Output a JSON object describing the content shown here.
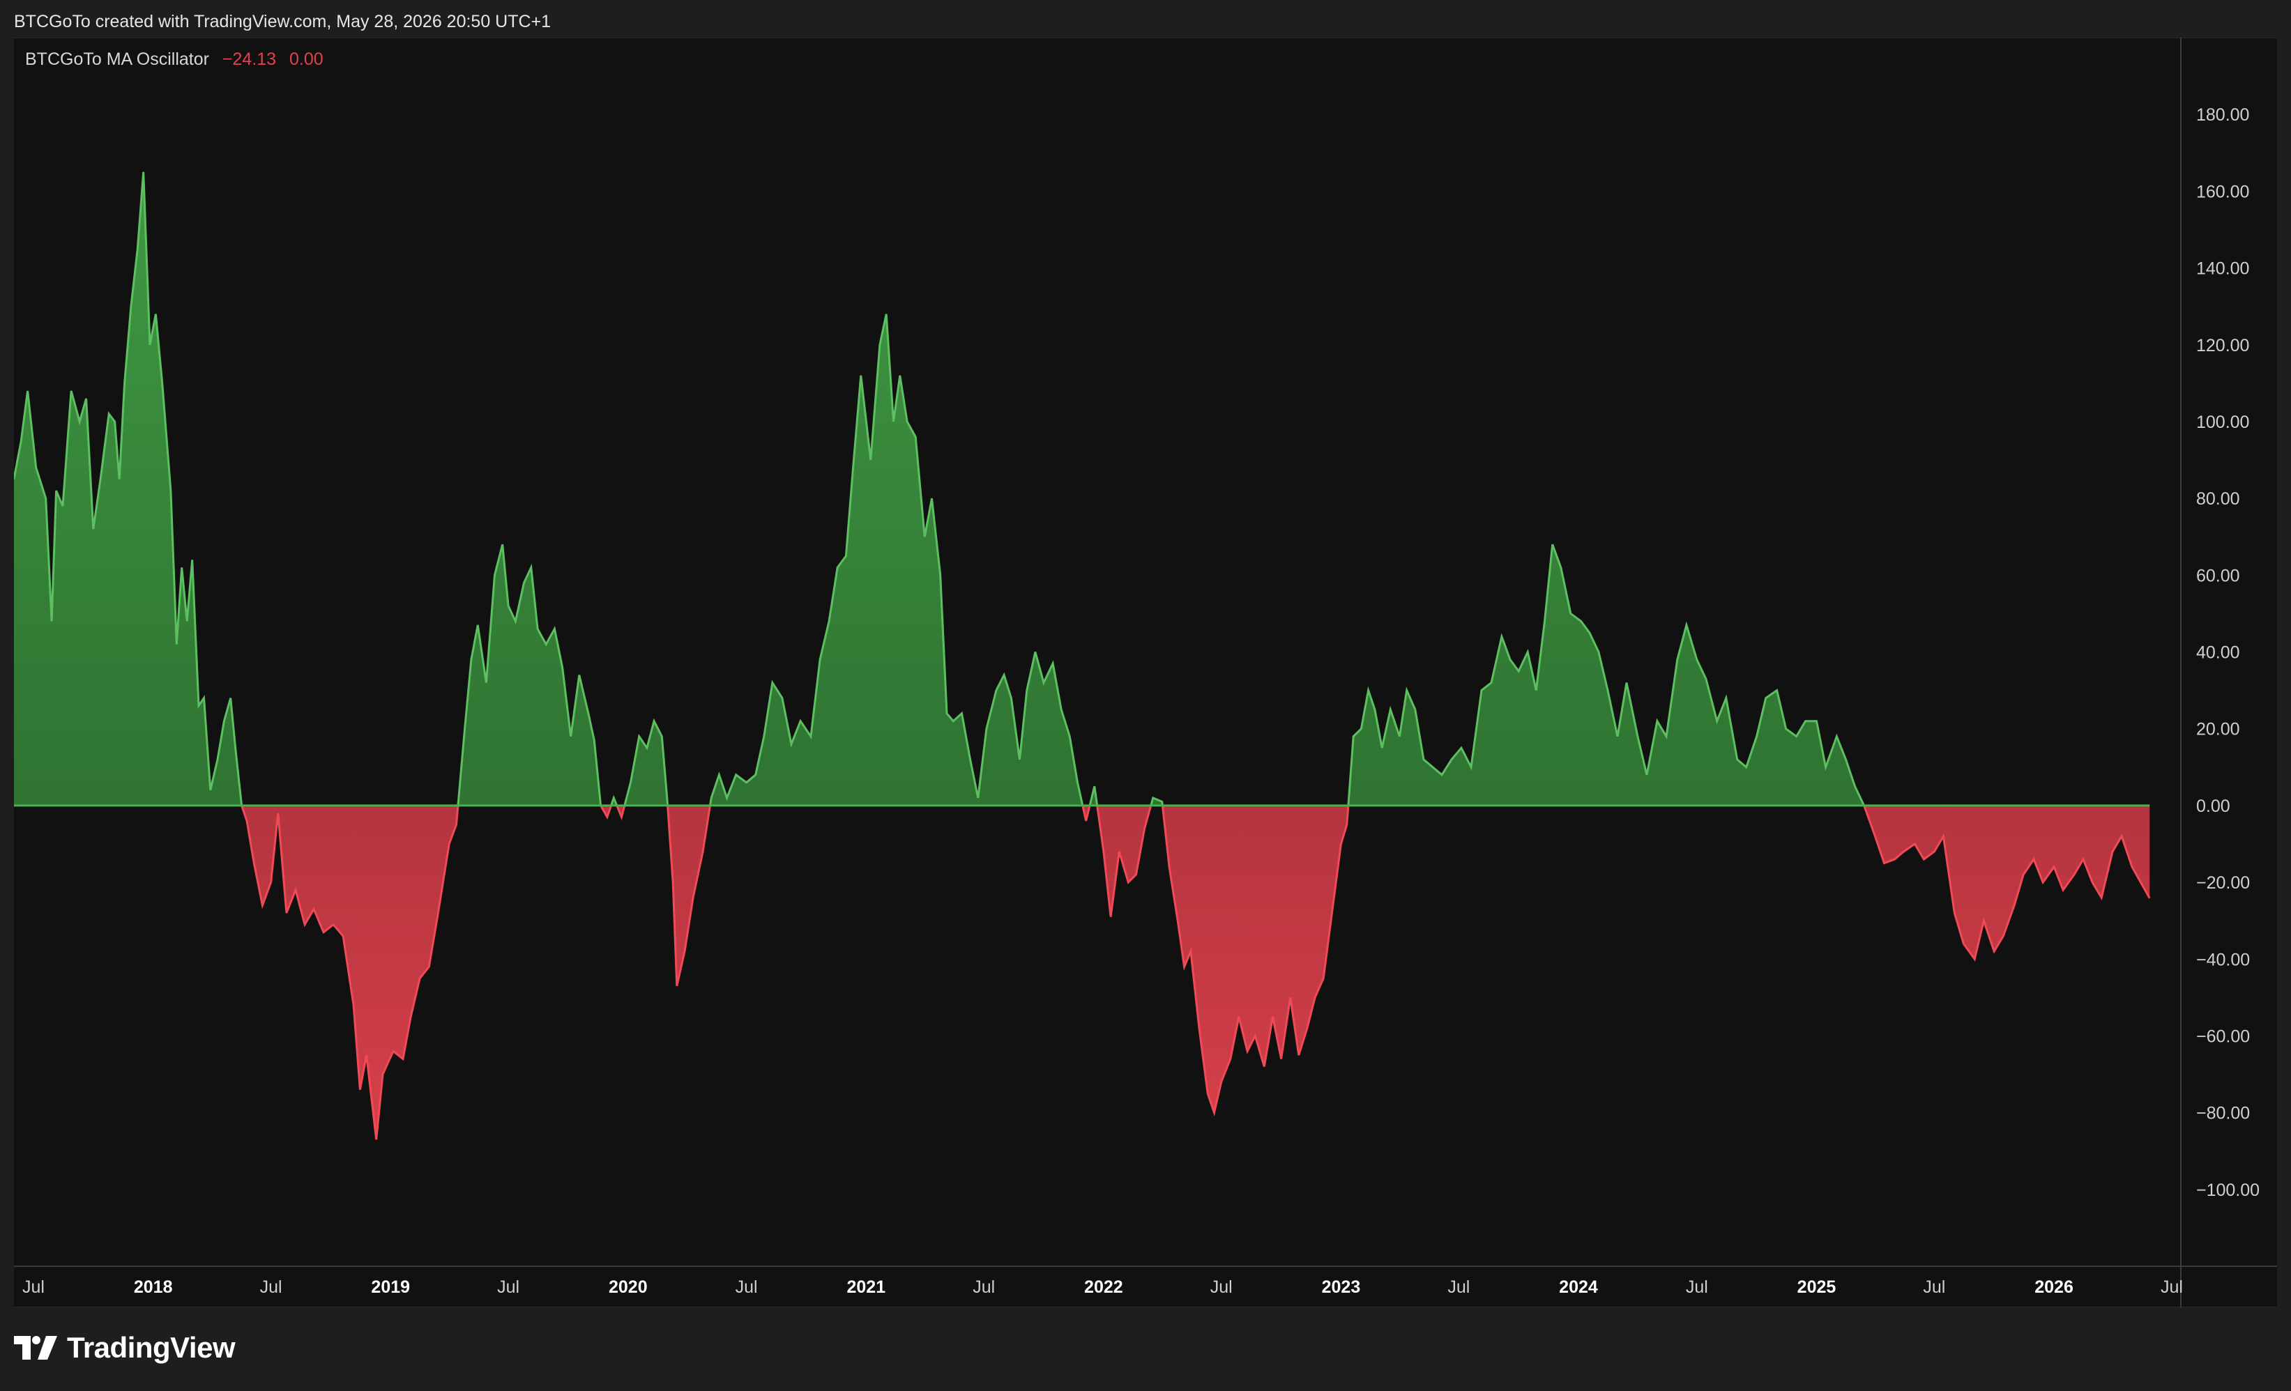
{
  "header": {
    "text": "BTCGoTo created with TradingView.com, May 28, 2026 20:50 UTC+1"
  },
  "legend": {
    "name": "BTCGoTo MA Oscillator",
    "value1": "−24.13",
    "value2": "0.00"
  },
  "brand": {
    "name": "TradingView"
  },
  "colors": {
    "positive": "#43a047",
    "negative": "#e0424d",
    "background": "#111111",
    "zero_line_positive": "#4caf50"
  },
  "chart_data": {
    "type": "area",
    "title": "",
    "xlabel": "",
    "ylabel": "",
    "ylim": [
      -120,
      200
    ],
    "xlim": [
      "2017-06-01",
      "2026-07-15"
    ],
    "y_ticks": [
      180,
      160,
      140,
      120,
      100,
      80,
      60,
      40,
      20,
      0,
      -20,
      -40,
      -60,
      -80,
      -100
    ],
    "y_tick_labels": [
      "180.00",
      "160.00",
      "140.00",
      "120.00",
      "100.00",
      "80.00",
      "60.00",
      "40.00",
      "20.00",
      "0.00",
      "−20.00",
      "−40.00",
      "−60.00",
      "−80.00",
      "−100.00"
    ],
    "x_ticks": [
      {
        "label": "Jul",
        "date": "2017-07-01",
        "year": false
      },
      {
        "label": "2018",
        "date": "2018-01-01",
        "year": true
      },
      {
        "label": "Jul",
        "date": "2018-07-01",
        "year": false
      },
      {
        "label": "2019",
        "date": "2019-01-01",
        "year": true
      },
      {
        "label": "Jul",
        "date": "2019-07-01",
        "year": false
      },
      {
        "label": "2020",
        "date": "2020-01-01",
        "year": true
      },
      {
        "label": "Jul",
        "date": "2020-07-01",
        "year": false
      },
      {
        "label": "2021",
        "date": "2021-01-01",
        "year": true
      },
      {
        "label": "Jul",
        "date": "2021-07-01",
        "year": false
      },
      {
        "label": "2022",
        "date": "2022-01-01",
        "year": true
      },
      {
        "label": "Jul",
        "date": "2022-07-01",
        "year": false
      },
      {
        "label": "2023",
        "date": "2023-01-01",
        "year": true
      },
      {
        "label": "Jul",
        "date": "2023-07-01",
        "year": false
      },
      {
        "label": "2024",
        "date": "2024-01-01",
        "year": true
      },
      {
        "label": "Jul",
        "date": "2024-07-01",
        "year": false
      },
      {
        "label": "2025",
        "date": "2025-01-01",
        "year": true
      },
      {
        "label": "Jul",
        "date": "2025-07-01",
        "year": false
      },
      {
        "label": "2026",
        "date": "2026-01-01",
        "year": true
      },
      {
        "label": "Jul",
        "date": "2026-07-01",
        "year": false
      }
    ],
    "grid": false,
    "series": [
      {
        "name": "BTCGoTo MA Oscillator",
        "points": [
          [
            "2017-06-01",
            85
          ],
          [
            "2017-06-12",
            95
          ],
          [
            "2017-06-22",
            108
          ],
          [
            "2017-07-05",
            88
          ],
          [
            "2017-07-20",
            80
          ],
          [
            "2017-07-29",
            48
          ],
          [
            "2017-08-05",
            82
          ],
          [
            "2017-08-15",
            78
          ],
          [
            "2017-08-28",
            108
          ],
          [
            "2017-09-10",
            100
          ],
          [
            "2017-09-20",
            106
          ],
          [
            "2017-10-01",
            72
          ],
          [
            "2017-10-12",
            85
          ],
          [
            "2017-10-25",
            102
          ],
          [
            "2017-11-03",
            100
          ],
          [
            "2017-11-10",
            85
          ],
          [
            "2017-11-18",
            110
          ],
          [
            "2017-11-28",
            130
          ],
          [
            "2017-12-08",
            145
          ],
          [
            "2017-12-17",
            165
          ],
          [
            "2017-12-27",
            120
          ],
          [
            "2018-01-05",
            128
          ],
          [
            "2018-01-15",
            110
          ],
          [
            "2018-01-28",
            82
          ],
          [
            "2018-02-06",
            42
          ],
          [
            "2018-02-14",
            62
          ],
          [
            "2018-02-22",
            48
          ],
          [
            "2018-03-02",
            64
          ],
          [
            "2018-03-12",
            26
          ],
          [
            "2018-03-20",
            28
          ],
          [
            "2018-03-30",
            4
          ],
          [
            "2018-04-10",
            12
          ],
          [
            "2018-04-20",
            22
          ],
          [
            "2018-04-30",
            28
          ],
          [
            "2018-05-08",
            14
          ],
          [
            "2018-05-17",
            0
          ],
          [
            "2018-05-25",
            -4
          ],
          [
            "2018-06-05",
            -15
          ],
          [
            "2018-06-18",
            -26
          ],
          [
            "2018-07-01",
            -20
          ],
          [
            "2018-07-12",
            -2
          ],
          [
            "2018-07-25",
            -28
          ],
          [
            "2018-08-08",
            -22
          ],
          [
            "2018-08-22",
            -31
          ],
          [
            "2018-09-05",
            -27
          ],
          [
            "2018-09-20",
            -33
          ],
          [
            "2018-10-05",
            -31
          ],
          [
            "2018-10-20",
            -34
          ],
          [
            "2018-11-05",
            -52
          ],
          [
            "2018-11-15",
            -74
          ],
          [
            "2018-11-25",
            -65
          ],
          [
            "2018-12-10",
            -87
          ],
          [
            "2018-12-20",
            -70
          ],
          [
            "2019-01-05",
            -64
          ],
          [
            "2019-01-20",
            -66
          ],
          [
            "2019-02-01",
            -55
          ],
          [
            "2019-02-15",
            -45
          ],
          [
            "2019-03-01",
            -42
          ],
          [
            "2019-03-15",
            -28
          ],
          [
            "2019-04-01",
            -10
          ],
          [
            "2019-04-12",
            -5
          ],
          [
            "2019-04-25",
            20
          ],
          [
            "2019-05-05",
            38
          ],
          [
            "2019-05-15",
            47
          ],
          [
            "2019-05-28",
            32
          ],
          [
            "2019-06-10",
            60
          ],
          [
            "2019-06-22",
            68
          ],
          [
            "2019-07-01",
            52
          ],
          [
            "2019-07-12",
            48
          ],
          [
            "2019-07-25",
            58
          ],
          [
            "2019-08-05",
            62
          ],
          [
            "2019-08-15",
            46
          ],
          [
            "2019-08-28",
            42
          ],
          [
            "2019-09-10",
            46
          ],
          [
            "2019-09-22",
            36
          ],
          [
            "2019-10-05",
            18
          ],
          [
            "2019-10-18",
            34
          ],
          [
            "2019-11-01",
            24
          ],
          [
            "2019-11-10",
            17
          ],
          [
            "2019-11-20",
            0
          ],
          [
            "2019-11-30",
            -3
          ],
          [
            "2019-12-10",
            2
          ],
          [
            "2019-12-22",
            -3
          ],
          [
            "2020-01-05",
            6
          ],
          [
            "2020-01-18",
            18
          ],
          [
            "2020-01-30",
            15
          ],
          [
            "2020-02-10",
            22
          ],
          [
            "2020-02-22",
            18
          ],
          [
            "2020-03-01",
            2
          ],
          [
            "2020-03-10",
            -20
          ],
          [
            "2020-03-16",
            -47
          ],
          [
            "2020-03-28",
            -38
          ],
          [
            "2020-04-10",
            -24
          ],
          [
            "2020-04-25",
            -12
          ],
          [
            "2020-05-08",
            2
          ],
          [
            "2020-05-20",
            8
          ],
          [
            "2020-06-01",
            2
          ],
          [
            "2020-06-15",
            8
          ],
          [
            "2020-07-01",
            6
          ],
          [
            "2020-07-15",
            8
          ],
          [
            "2020-07-28",
            18
          ],
          [
            "2020-08-10",
            32
          ],
          [
            "2020-08-25",
            28
          ],
          [
            "2020-09-08",
            16
          ],
          [
            "2020-09-22",
            22
          ],
          [
            "2020-10-08",
            18
          ],
          [
            "2020-10-22",
            38
          ],
          [
            "2020-11-05",
            48
          ],
          [
            "2020-11-18",
            62
          ],
          [
            "2020-12-01",
            65
          ],
          [
            "2020-12-12",
            88
          ],
          [
            "2020-12-24",
            112
          ],
          [
            "2021-01-08",
            90
          ],
          [
            "2021-01-22",
            120
          ],
          [
            "2021-02-01",
            128
          ],
          [
            "2021-02-12",
            100
          ],
          [
            "2021-02-22",
            112
          ],
          [
            "2021-03-05",
            100
          ],
          [
            "2021-03-18",
            96
          ],
          [
            "2021-04-01",
            70
          ],
          [
            "2021-04-12",
            80
          ],
          [
            "2021-04-25",
            60
          ],
          [
            "2021-05-05",
            24
          ],
          [
            "2021-05-15",
            22
          ],
          [
            "2021-05-28",
            24
          ],
          [
            "2021-06-10",
            12
          ],
          [
            "2021-06-22",
            2
          ],
          [
            "2021-07-05",
            20
          ],
          [
            "2021-07-20",
            30
          ],
          [
            "2021-08-01",
            34
          ],
          [
            "2021-08-12",
            28
          ],
          [
            "2021-08-25",
            12
          ],
          [
            "2021-09-05",
            30
          ],
          [
            "2021-09-18",
            40
          ],
          [
            "2021-10-01",
            32
          ],
          [
            "2021-10-15",
            37
          ],
          [
            "2021-10-28",
            25
          ],
          [
            "2021-11-10",
            18
          ],
          [
            "2021-11-22",
            6
          ],
          [
            "2021-12-05",
            -4
          ],
          [
            "2021-12-18",
            5
          ],
          [
            "2022-01-01",
            -12
          ],
          [
            "2022-01-12",
            -29
          ],
          [
            "2022-01-25",
            -12
          ],
          [
            "2022-02-08",
            -20
          ],
          [
            "2022-02-20",
            -18
          ],
          [
            "2022-03-05",
            -6
          ],
          [
            "2022-03-18",
            2
          ],
          [
            "2022-04-01",
            1
          ],
          [
            "2022-04-12",
            -16
          ],
          [
            "2022-04-25",
            -30
          ],
          [
            "2022-05-05",
            -42
          ],
          [
            "2022-05-15",
            -38
          ],
          [
            "2022-05-28",
            -58
          ],
          [
            "2022-06-10",
            -75
          ],
          [
            "2022-06-20",
            -80
          ],
          [
            "2022-07-01",
            -72
          ],
          [
            "2022-07-15",
            -66
          ],
          [
            "2022-07-28",
            -55
          ],
          [
            "2022-08-10",
            -64
          ],
          [
            "2022-08-22",
            -60
          ],
          [
            "2022-09-05",
            -68
          ],
          [
            "2022-09-18",
            -55
          ],
          [
            "2022-10-01",
            -66
          ],
          [
            "2022-10-15",
            -50
          ],
          [
            "2022-10-28",
            -65
          ],
          [
            "2022-11-10",
            -58
          ],
          [
            "2022-11-22",
            -50
          ],
          [
            "2022-12-05",
            -45
          ],
          [
            "2022-12-18",
            -28
          ],
          [
            "2023-01-01",
            -10
          ],
          [
            "2023-01-10",
            -5
          ],
          [
            "2023-01-20",
            18
          ],
          [
            "2023-02-01",
            20
          ],
          [
            "2023-02-12",
            30
          ],
          [
            "2023-02-22",
            25
          ],
          [
            "2023-03-05",
            15
          ],
          [
            "2023-03-18",
            25
          ],
          [
            "2023-04-01",
            18
          ],
          [
            "2023-04-12",
            30
          ],
          [
            "2023-04-25",
            25
          ],
          [
            "2023-05-08",
            12
          ],
          [
            "2023-05-22",
            10
          ],
          [
            "2023-06-05",
            8
          ],
          [
            "2023-06-20",
            12
          ],
          [
            "2023-07-05",
            15
          ],
          [
            "2023-07-20",
            10
          ],
          [
            "2023-08-05",
            30
          ],
          [
            "2023-08-20",
            32
          ],
          [
            "2023-09-05",
            44
          ],
          [
            "2023-09-18",
            38
          ],
          [
            "2023-10-01",
            35
          ],
          [
            "2023-10-15",
            40
          ],
          [
            "2023-10-28",
            30
          ],
          [
            "2023-11-10",
            48
          ],
          [
            "2023-11-22",
            68
          ],
          [
            "2023-12-05",
            62
          ],
          [
            "2023-12-20",
            50
          ],
          [
            "2024-01-05",
            48
          ],
          [
            "2024-01-18",
            45
          ],
          [
            "2024-02-01",
            40
          ],
          [
            "2024-02-15",
            30
          ],
          [
            "2024-03-01",
            18
          ],
          [
            "2024-03-15",
            32
          ],
          [
            "2024-04-01",
            18
          ],
          [
            "2024-04-15",
            8
          ],
          [
            "2024-05-01",
            22
          ],
          [
            "2024-05-15",
            18
          ],
          [
            "2024-06-01",
            38
          ],
          [
            "2024-06-15",
            47
          ],
          [
            "2024-07-01",
            38
          ],
          [
            "2024-07-15",
            33
          ],
          [
            "2024-08-01",
            22
          ],
          [
            "2024-08-15",
            28
          ],
          [
            "2024-09-01",
            12
          ],
          [
            "2024-09-15",
            10
          ],
          [
            "2024-10-01",
            18
          ],
          [
            "2024-10-15",
            28
          ],
          [
            "2024-11-01",
            30
          ],
          [
            "2024-11-15",
            20
          ],
          [
            "2024-12-01",
            18
          ],
          [
            "2024-12-15",
            22
          ],
          [
            "2025-01-01",
            22
          ],
          [
            "2025-01-15",
            10
          ],
          [
            "2025-02-01",
            18
          ],
          [
            "2025-02-15",
            12
          ],
          [
            "2025-03-01",
            5
          ],
          [
            "2025-03-15",
            0
          ],
          [
            "2025-04-01",
            -8
          ],
          [
            "2025-04-15",
            -15
          ],
          [
            "2025-05-01",
            -14
          ],
          [
            "2025-05-15",
            -12
          ],
          [
            "2025-06-01",
            -10
          ],
          [
            "2025-06-15",
            -14
          ],
          [
            "2025-07-01",
            -12
          ],
          [
            "2025-07-15",
            -8
          ],
          [
            "2025-08-01",
            -28
          ],
          [
            "2025-08-15",
            -36
          ],
          [
            "2025-09-01",
            -40
          ],
          [
            "2025-09-15",
            -30
          ],
          [
            "2025-10-01",
            -38
          ],
          [
            "2025-10-15",
            -34
          ],
          [
            "2025-11-01",
            -26
          ],
          [
            "2025-11-15",
            -18
          ],
          [
            "2025-12-01",
            -14
          ],
          [
            "2025-12-15",
            -20
          ],
          [
            "2026-01-01",
            -16
          ],
          [
            "2026-01-15",
            -22
          ],
          [
            "2026-02-01",
            -18
          ],
          [
            "2026-02-15",
            -14
          ],
          [
            "2026-03-01",
            -20
          ],
          [
            "2026-03-15",
            -24
          ],
          [
            "2026-04-01",
            -12
          ],
          [
            "2026-04-15",
            -8
          ],
          [
            "2026-05-01",
            -16
          ],
          [
            "2026-05-28",
            -24.13
          ]
        ]
      }
    ]
  }
}
